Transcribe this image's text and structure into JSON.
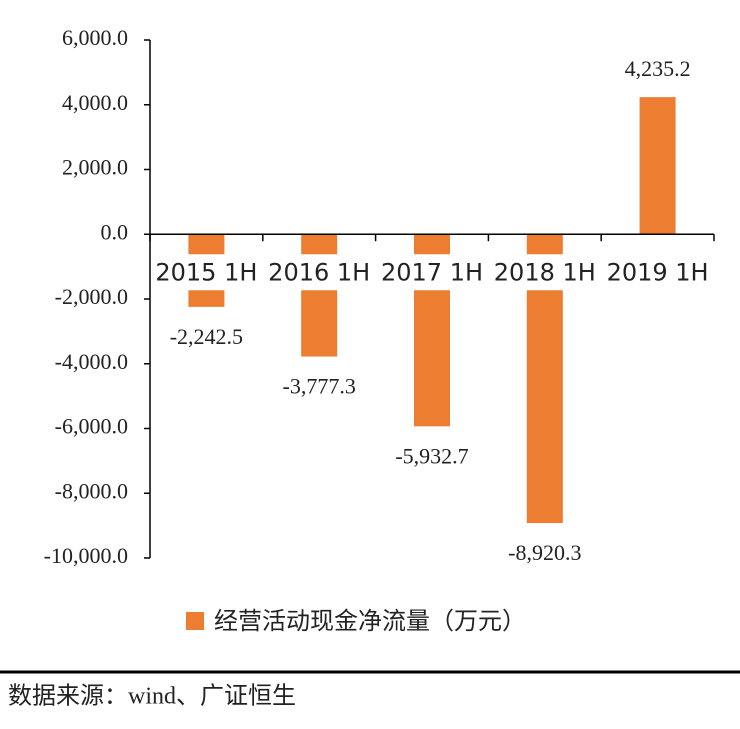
{
  "chart_data": {
    "type": "bar",
    "categories": [
      "2015 1H",
      "2016 1H",
      "2017 1H",
      "2018 1H",
      "2019 1H"
    ],
    "series": [
      {
        "name": "经营活动现金净流量（万元）",
        "color": "#ED7D31",
        "values": [
          -2242.5,
          -3777.3,
          -5932.7,
          -8920.3,
          4235.2
        ],
        "value_labels": [
          "-2,242.5",
          "-3,777.3",
          "-5,932.7",
          "-8,920.3",
          "4,235.2"
        ]
      }
    ],
    "ylim": [
      -10000,
      6000
    ],
    "yticks": [
      {
        "value": -10000,
        "label": "-10,000.0"
      },
      {
        "value": -8000,
        "label": "-8,000.0"
      },
      {
        "value": -6000,
        "label": "-6,000.0"
      },
      {
        "value": -4000,
        "label": "-4,000.0"
      },
      {
        "value": -2000,
        "label": "-2,000.0"
      },
      {
        "value": 0,
        "label": "0.0"
      },
      {
        "value": 2000,
        "label": "2,000.0"
      },
      {
        "value": 4000,
        "label": "4,000.0"
      },
      {
        "value": 6000,
        "label": "6,000.0"
      }
    ],
    "legend": "bottom"
  },
  "footer": {
    "source": "数据来源：wind、广证恒生"
  }
}
